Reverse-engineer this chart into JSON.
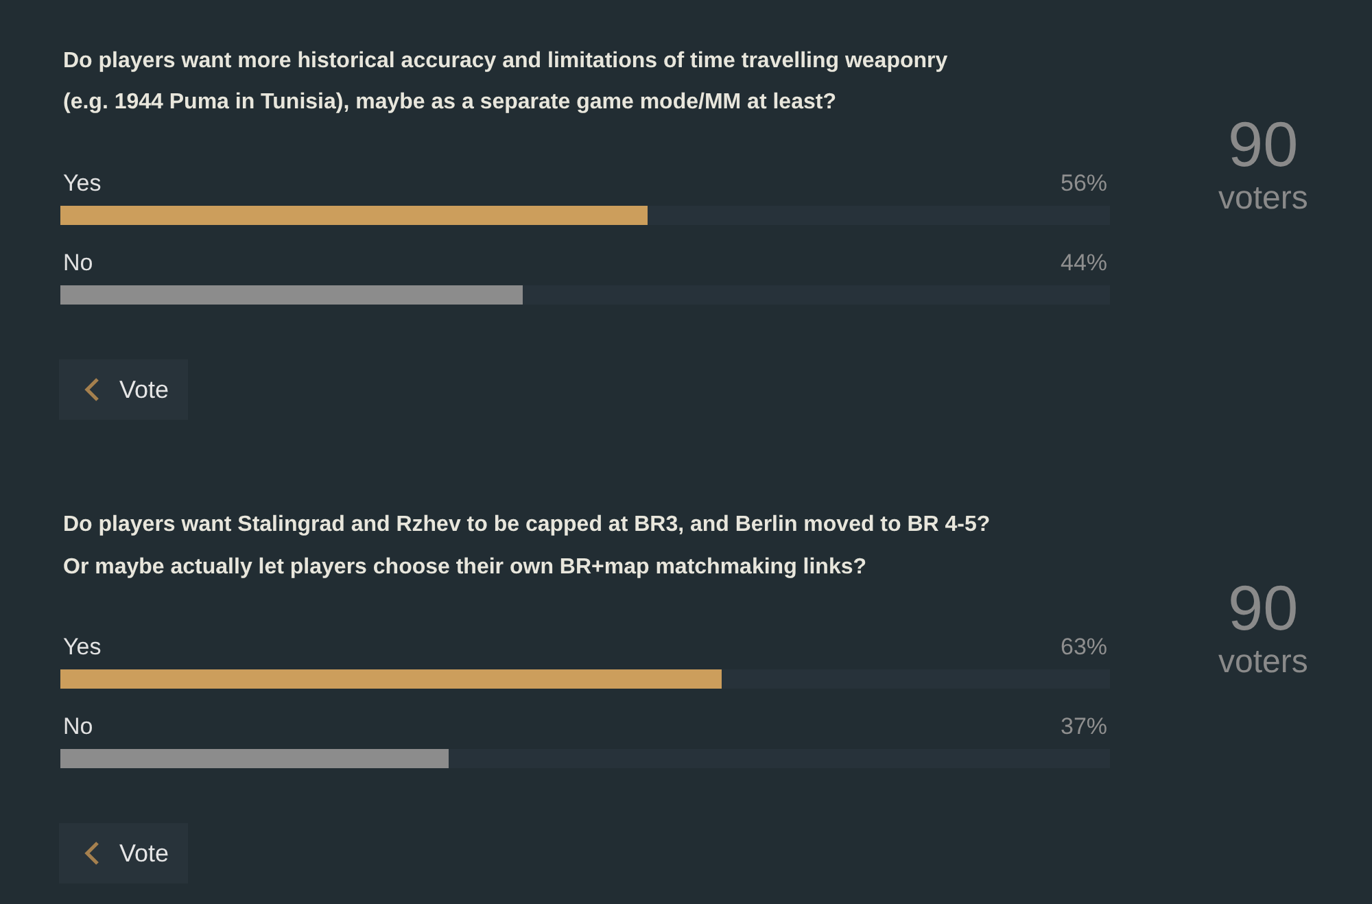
{
  "chart_data": [
    {
      "type": "bar",
      "orientation": "horizontal",
      "title": "Do players want more historical accuracy and limitations of time travelling weaponry (e.g. 1944 Puma in Tunisia), maybe as a separate game mode/MM at least?",
      "categories": [
        "Yes",
        "No"
      ],
      "values": [
        56,
        44
      ],
      "colors": [
        "#cc9e5c",
        "#8c8c8c"
      ],
      "value_labels": [
        "56%",
        "44%"
      ],
      "xlim": [
        0,
        100
      ],
      "annotations": [
        "90",
        "voters",
        "Vote"
      ]
    },
    {
      "type": "bar",
      "orientation": "horizontal",
      "title": "Do players want Stalingrad and Rzhev to be capped at BR3, and Berlin moved to BR 4-5? Or maybe actually let players choose their own BR+map matchmaking links?",
      "categories": [
        "Yes",
        "No"
      ],
      "values": [
        63,
        37
      ],
      "colors": [
        "#cc9e5c",
        "#8c8c8c"
      ],
      "value_labels": [
        "63%",
        "37%"
      ],
      "xlim": [
        0,
        100
      ],
      "annotations": [
        "90",
        "voters",
        "Vote"
      ]
    }
  ]
}
